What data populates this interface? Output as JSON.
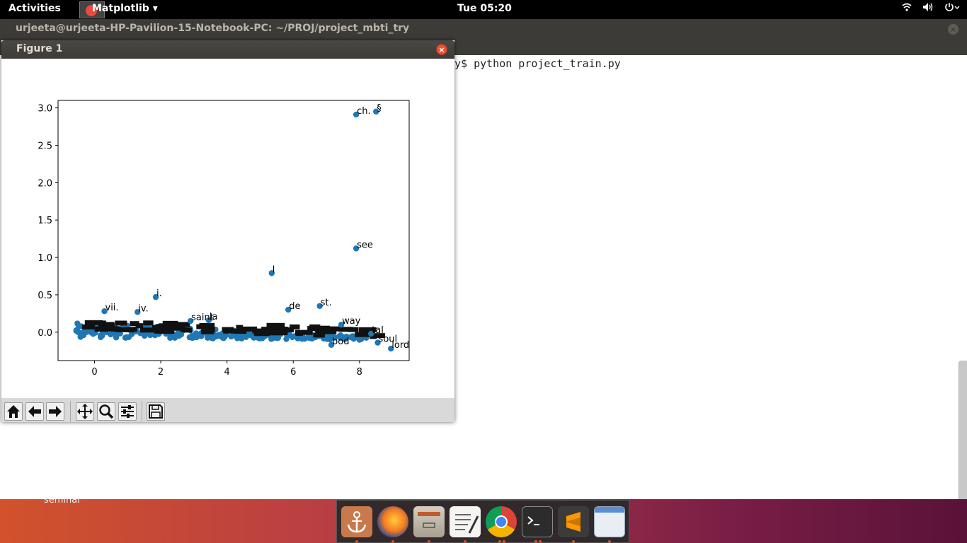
{
  "topbar": {
    "activities": "Activities",
    "app_menu": "Matplotlib ▾",
    "clock": "Tue 05:20",
    "icons": [
      "wifi-icon",
      "volume-icon",
      "power-icon"
    ]
  },
  "terminal": {
    "title": "urjeeta@urjeeta-HP-Pavilion-15-Notebook-PC: ~/PROJ/project_mbti_try",
    "command_line": "y$ python project_train.py"
  },
  "desktop": {
    "label": "seminar"
  },
  "dock": {
    "items": [
      "anchor-icon",
      "firefox-icon",
      "files-icon",
      "text-editor-icon",
      "chrome-icon",
      "terminal-icon",
      "sublime-icon",
      "window-icon"
    ]
  },
  "figure": {
    "title": "Figure 1",
    "close": "×",
    "toolbar": [
      "home-icon",
      "back-icon",
      "forward-icon",
      "pan-icon",
      "zoom-icon",
      "configure-icon",
      "save-icon"
    ]
  },
  "chart_data": {
    "type": "scatter",
    "title": "",
    "xlabel": "",
    "ylabel": "",
    "xlim": [
      -1.1,
      9.5
    ],
    "ylim": [
      -0.38,
      3.1
    ],
    "xticks": [
      "0",
      "2",
      "4",
      "6",
      "8"
    ],
    "xtick_values": [
      0,
      2,
      4,
      6,
      8
    ],
    "yticks": [
      "0.0",
      "0.5",
      "1.0",
      "1.5",
      "2.0",
      "2.5",
      "3.0"
    ],
    "ytick_values": [
      0.0,
      0.5,
      1.0,
      1.5,
      2.0,
      2.5,
      3.0
    ],
    "color": "#1f77b4",
    "labeled_points": [
      {
        "x": 7.9,
        "y": 2.91,
        "label": "ch."
      },
      {
        "x": 8.5,
        "y": 2.95,
        "label": "§"
      },
      {
        "x": 7.9,
        "y": 1.12,
        "label": "see"
      },
      {
        "x": 5.35,
        "y": 0.79,
        "label": "l"
      },
      {
        "x": 1.85,
        "y": 0.47,
        "label": "i."
      },
      {
        "x": 5.85,
        "y": 0.3,
        "label": "de"
      },
      {
        "x": 6.8,
        "y": 0.35,
        "label": "st."
      },
      {
        "x": 7.45,
        "y": 0.1,
        "label": "way"
      },
      {
        "x": 0.3,
        "y": 0.28,
        "label": "vii."
      },
      {
        "x": 1.3,
        "y": 0.27,
        "label": "iv."
      },
      {
        "x": 2.9,
        "y": 0.15,
        "label": "saint"
      },
      {
        "x": 3.45,
        "y": 0.16,
        "label": "la"
      },
      {
        "x": 8.95,
        "y": -0.22,
        "label": "lord"
      },
      {
        "x": 8.55,
        "y": -0.14,
        "label": "soul"
      },
      {
        "x": 8.35,
        "y": -0.02,
        "label": "tal"
      },
      {
        "x": 7.15,
        "y": -0.17,
        "label": "bod"
      }
    ]
  }
}
